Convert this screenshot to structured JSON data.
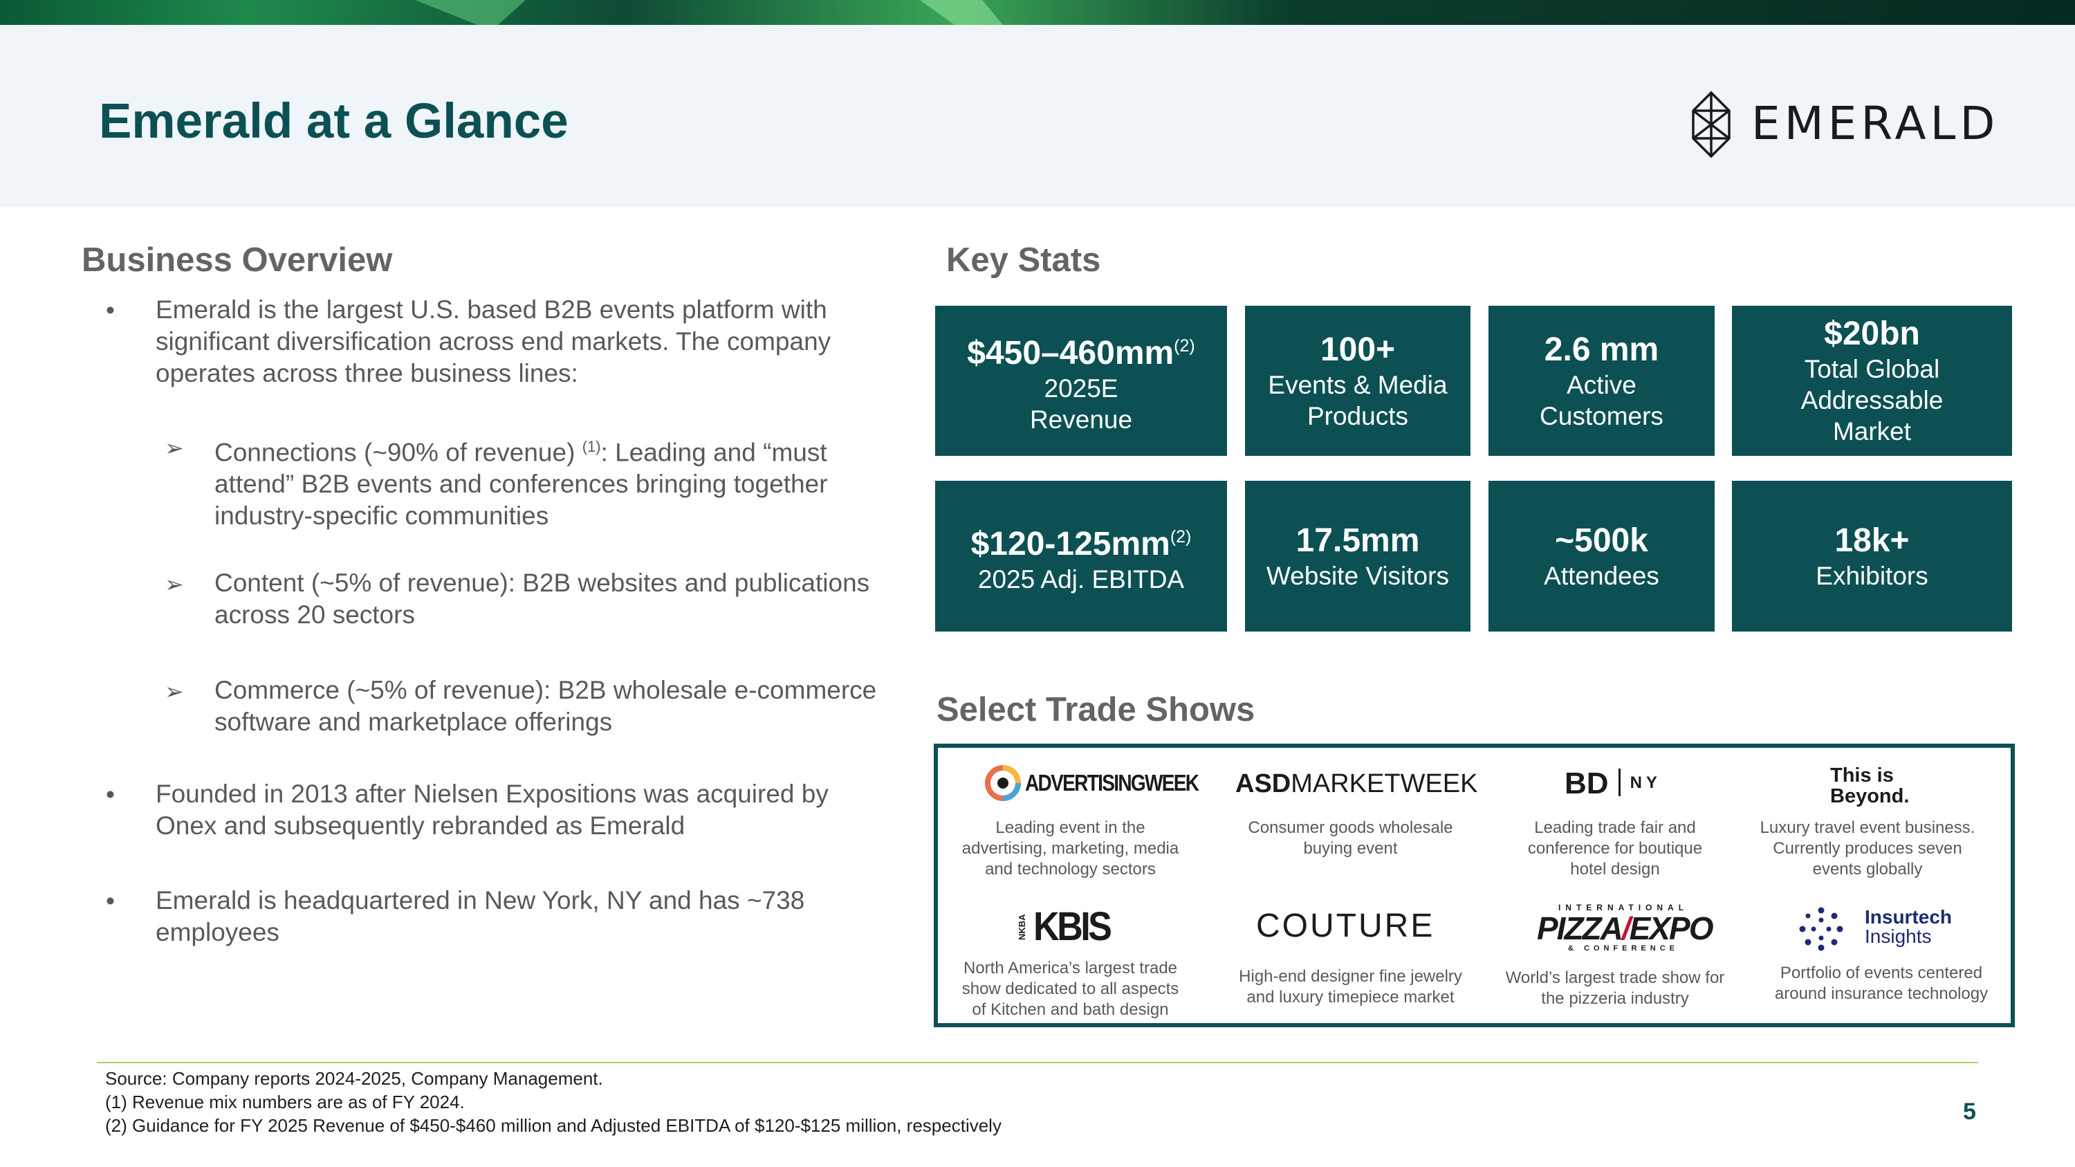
{
  "title": "Emerald at a Glance",
  "logo": {
    "wordmark": "EMERALD",
    "icon": "emerald-gem-icon"
  },
  "colors": {
    "primary": "#0c5054",
    "accent_green": "#a4cf6a",
    "header_bg": "#eff5f8"
  },
  "business_overview": {
    "heading": "Business Overview",
    "bullet1": {
      "line1": "Emerald is the largest U.S. based B2B events platform with",
      "line2": "significant diversification across end markets. The company",
      "line3": "operates across three business lines:"
    },
    "sub1": {
      "line1_pre": "Connections (~90% of revenue) ",
      "line1_sup": "(1)",
      "line1_post": ": Leading and “must",
      "line2": "attend” B2B events and conferences bringing together",
      "line3": "industry-specific communities"
    },
    "sub2": {
      "line1": "Content (~5% of revenue): B2B websites and publications",
      "line2": "across 20 sectors"
    },
    "sub3": {
      "line1": "Commerce (~5% of revenue): B2B wholesale e-commerce",
      "line2": "software and marketplace offerings"
    },
    "bullet2": {
      "line1": "Founded in 2013 after Nielsen Expositions was acquired by",
      "line2": "Onex and subsequently rebranded as Emerald"
    },
    "bullet3": {
      "line1": "Emerald is headquartered in New York, NY and has ~738",
      "line2": "employees"
    },
    "bullet_glyph": "•",
    "arrow_glyph": "➢"
  },
  "key_stats": {
    "heading": "Key Stats",
    "s1": {
      "value": "$450–460mm",
      "sup": "(2)",
      "line1": "2025E",
      "line2": "Revenue"
    },
    "s2": {
      "value": "100+",
      "line1": "Events & Media",
      "line2": "Products"
    },
    "s3": {
      "value": "2.6 mm",
      "line1": "Active",
      "line2": "Customers"
    },
    "s4": {
      "value": "$20bn",
      "line1": "Total Global",
      "line2": "Addressable",
      "line3": "Market"
    },
    "s5": {
      "value": "$120-125mm",
      "sup": "(2)",
      "line1": "2025 Adj. EBITDA"
    },
    "s6": {
      "value": "17.5mm",
      "line1": "Website Visitors"
    },
    "s7": {
      "value": "~500k",
      "line1": "Attendees"
    },
    "s8": {
      "value": "18k+",
      "line1": "Exhibitors"
    }
  },
  "trade_shows": {
    "heading": "Select Trade Shows",
    "t1": {
      "logo": "ADVERTISINGWEEK",
      "l1": "Leading event in the",
      "l2": "advertising, marketing, media",
      "l3": "and technology sectors"
    },
    "t2": {
      "logo_bold": "ASD",
      "logo_rest": "MARKETWEEK",
      "l1": "Consumer goods wholesale",
      "l2": "buying event"
    },
    "t3": {
      "logo_bold": "BD",
      "logo_rest": "NY",
      "l1": "Leading trade fair and",
      "l2": "conference for boutique",
      "l3": "hotel design"
    },
    "t4": {
      "logo1": "This is",
      "logo2": "Beyond.",
      "l1": "Luxury travel event business.",
      "l2": "Currently produces seven",
      "l3": "events globally"
    },
    "t5": {
      "logo_side": "NKBA",
      "logo": "KBIS",
      "l1": "North America’s largest trade",
      "l2": "show dedicated to all aspects",
      "l3": "of Kitchen and bath design"
    },
    "t6": {
      "logo": "COUTURE",
      "l1": "High-end designer fine jewelry",
      "l2": "and luxury timepiece market"
    },
    "t7": {
      "logo_top": "INTERNATIONAL",
      "logo_a": "PIZZA",
      "logo_b": "EXPO",
      "logo_bottom": "& CONFERENCE",
      "l1": "World’s largest trade show for",
      "l2": "the pizzeria industry"
    },
    "t8": {
      "logo1": "Insurtech",
      "logo2": "Insights",
      "l1": "Portfolio of events centered",
      "l2": "around insurance technology"
    }
  },
  "footer": {
    "source": "Source: Company reports 2024-2025, Company Management.",
    "note1": "(1) Revenue mix numbers are as of FY 2024.",
    "note2": "(2) Guidance for FY 2025 Revenue of $450-$460 million and Adjusted EBITDA of $120-$125 million, respectively",
    "page_number": "5"
  }
}
